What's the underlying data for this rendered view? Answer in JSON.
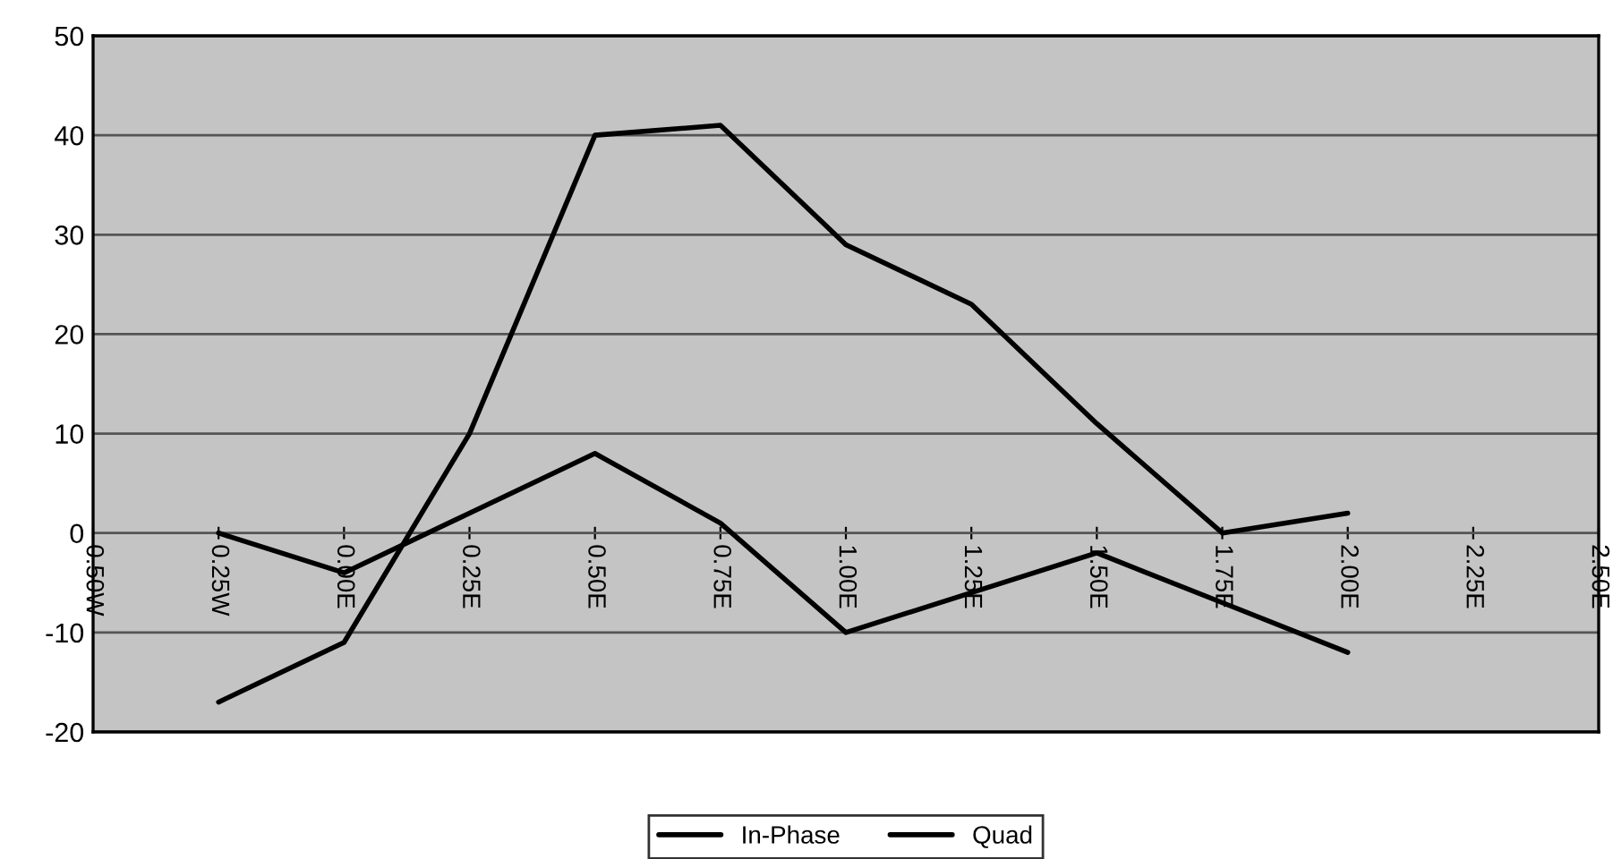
{
  "chart_data": {
    "type": "line",
    "categories": [
      "0.50W",
      "0.25W",
      "0.00E",
      "0.25E",
      "0.50E",
      "0.75E",
      "1.00E",
      "1.25E",
      "1.50E",
      "1.75E",
      "2.00E",
      "2.25E",
      "2.50E"
    ],
    "series": [
      {
        "name": "In-Phase",
        "color": "#000000",
        "values": [
          null,
          -17,
          -11,
          10,
          40,
          41,
          29,
          23,
          11,
          0,
          2,
          null,
          null
        ]
      },
      {
        "name": "Quad",
        "color": "#000000",
        "values": [
          null,
          0,
          -4,
          2,
          8,
          1,
          -10,
          -6,
          -2,
          -7,
          -12,
          null,
          null
        ]
      }
    ],
    "ylim": [
      -20,
      50
    ],
    "yticks": [
      -20,
      -10,
      0,
      10,
      20,
      30,
      40,
      50
    ],
    "grid": "y",
    "legend": "bottom",
    "marker": "none",
    "line_style": "solid"
  }
}
